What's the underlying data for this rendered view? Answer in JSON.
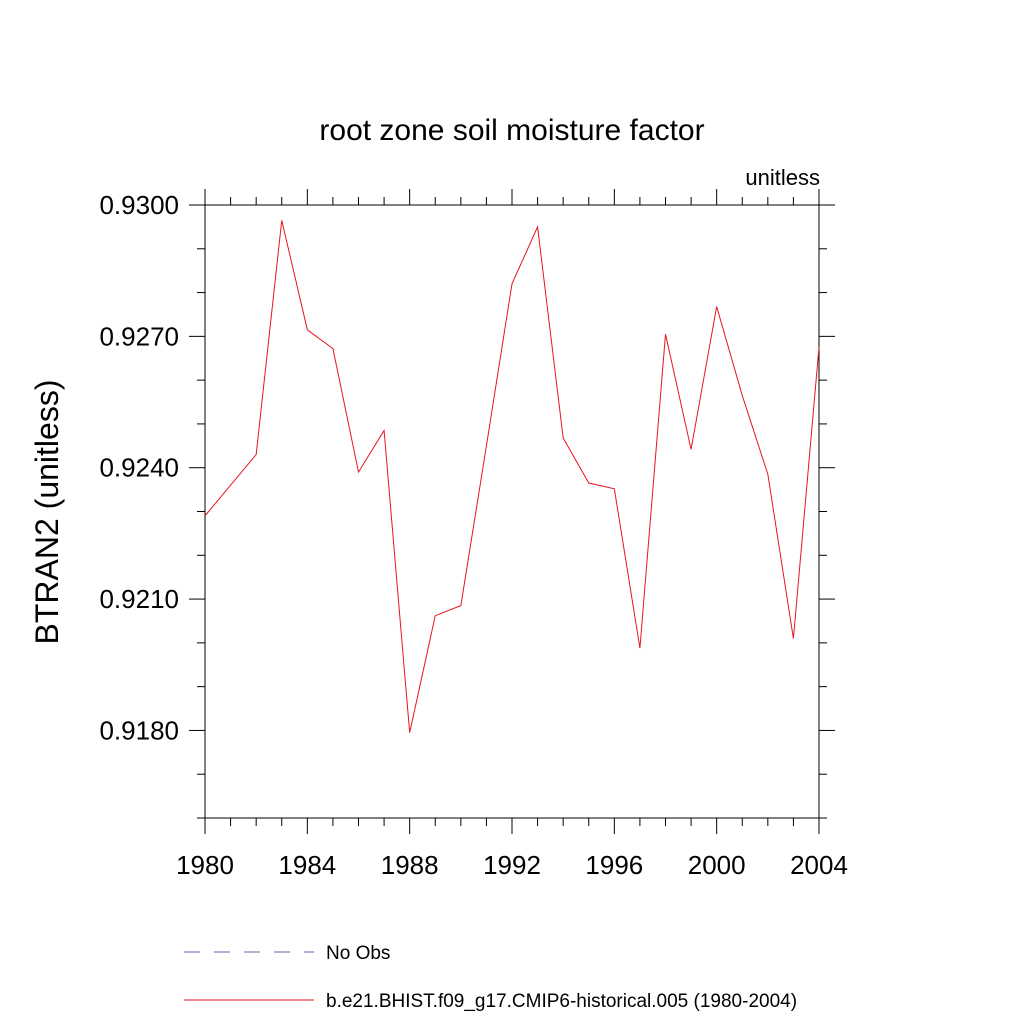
{
  "chart_data": {
    "type": "line",
    "title": "root zone soil moisture factor",
    "units_label": "unitless",
    "xlabel": "",
    "ylabel": "BTRAN2  (unitless)",
    "xlim": [
      1980,
      2004
    ],
    "ylim": [
      0.916,
      0.93
    ],
    "xticks_major": [
      1980,
      1984,
      1988,
      1992,
      1996,
      2000,
      2004
    ],
    "xtick_labels": [
      "1980",
      "1984",
      "1988",
      "1992",
      "1996",
      "2000",
      "2004"
    ],
    "yticks_major": [
      0.918,
      0.921,
      0.924,
      0.927,
      0.93
    ],
    "ytick_labels": [
      "0.9180",
      "0.9210",
      "0.9240",
      "0.9270",
      "0.9300"
    ],
    "yticks_minor_step": 0.001,
    "grid": false,
    "legend_position": "bottom",
    "series": [
      {
        "name": "No Obs",
        "color": "#6b5fb0",
        "dash": "dashed",
        "x": [],
        "values": []
      },
      {
        "name": "b.e21.BHIST.f09_g17.CMIP6-historical.005 (1980-2004)",
        "color": "#e8141c",
        "dash": "solid",
        "x": [
          1980,
          1981,
          1982,
          1983,
          1984,
          1985,
          1986,
          1987,
          1988,
          1989,
          1990,
          1991,
          1992,
          1993,
          1994,
          1995,
          1996,
          1997,
          1998,
          1999,
          2000,
          2001,
          2002,
          2003,
          2004
        ],
        "values": [
          0.9229,
          0.9236,
          0.9243,
          0.92965,
          0.92715,
          0.92672,
          0.9239,
          0.92485,
          0.91795,
          0.92062,
          0.92085,
          0.9245,
          0.9282,
          0.9295,
          0.92468,
          0.92365,
          0.92352,
          0.91988,
          0.92705,
          0.92442,
          0.92768,
          0.92565,
          0.92385,
          0.9201,
          0.92675
        ]
      }
    ]
  }
}
